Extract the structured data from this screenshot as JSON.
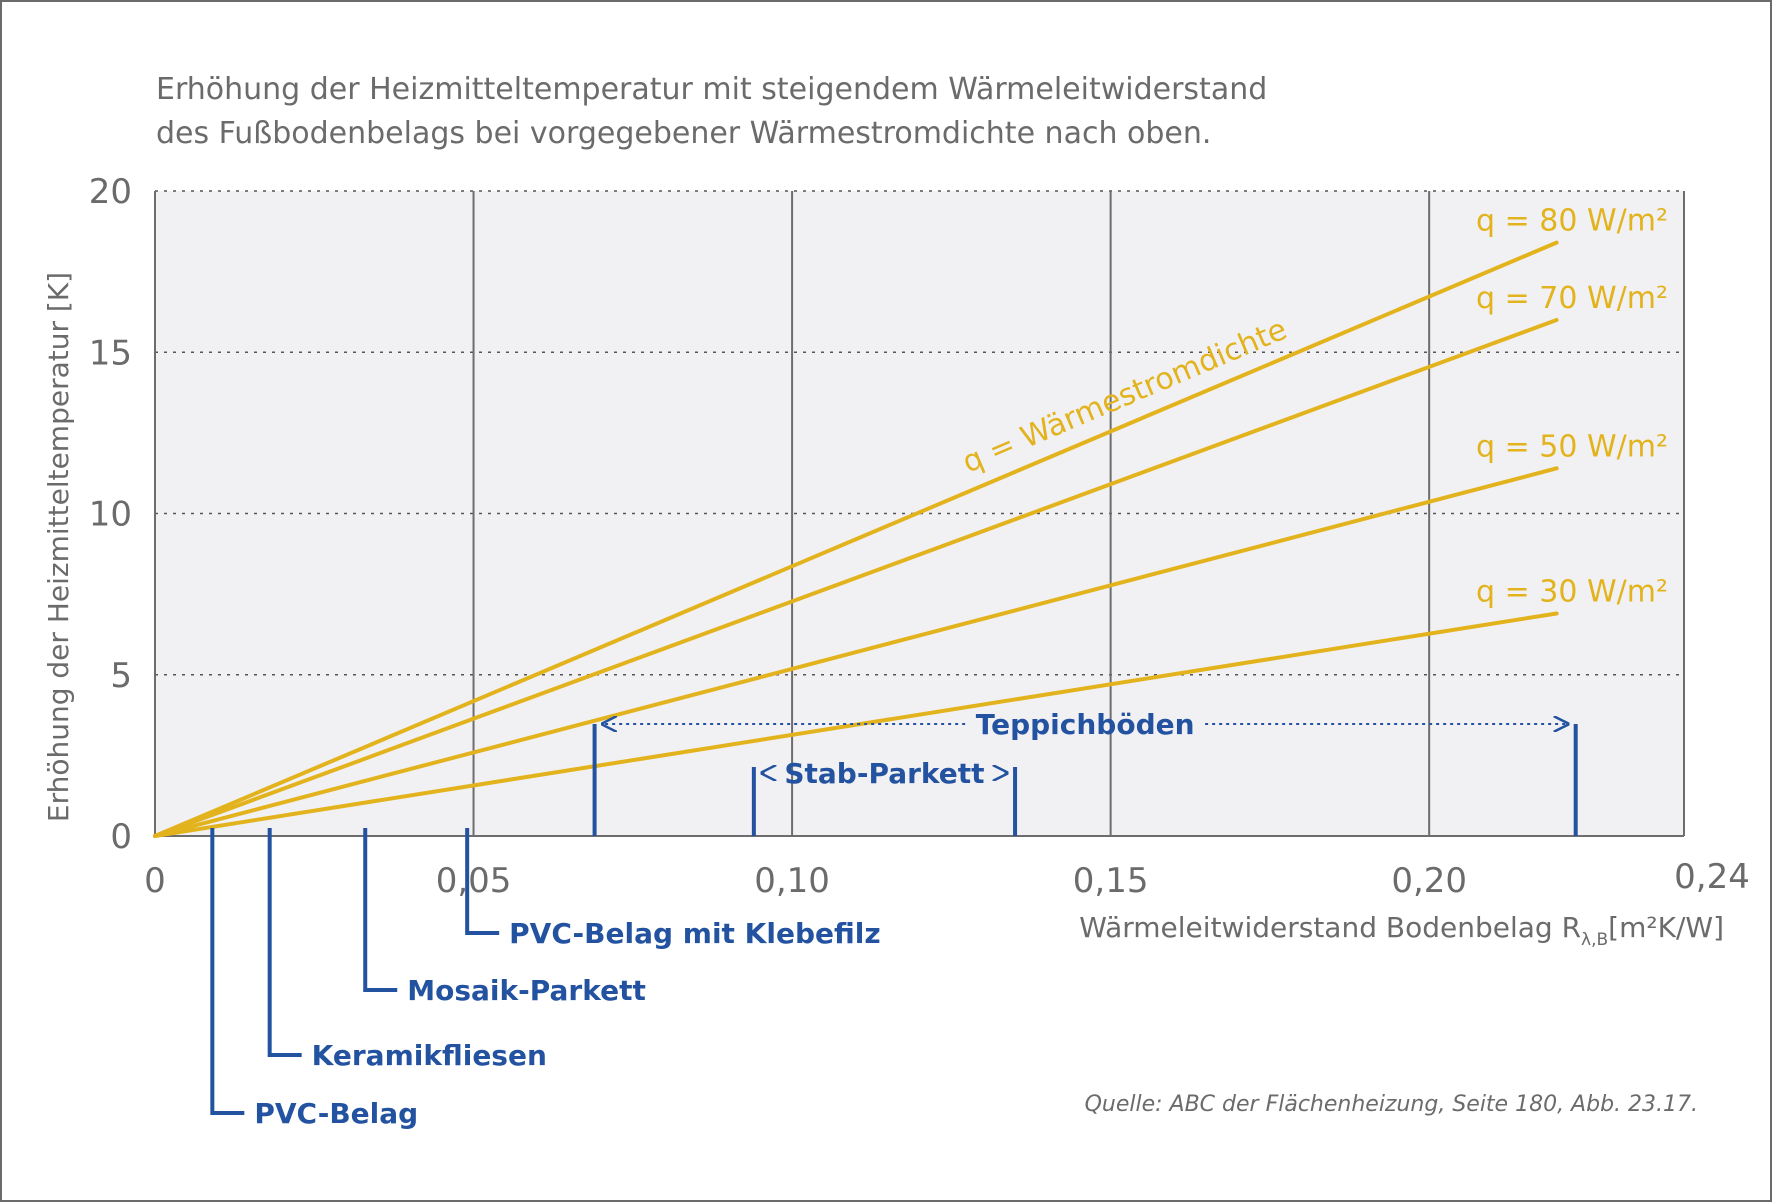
{
  "chart_data": {
    "type": "line",
    "title": "Erhöhung der Heizmitteltemperatur mit steigendem Wärmeleitwiderstand",
    "subtitle": "des Fußbodenbelags bei vorgegebener Wärmestromdichte nach oben.",
    "xlabel": "Wärmeleitwiderstand Bodenbelag R",
    "xlabel_sub": "λ,B",
    "xlabel_unit": "[m²K/W]",
    "ylabel": "Erhöhung der Heizmitteltemperatur [K]",
    "xlim": [
      0,
      0.24
    ],
    "ylim": [
      0,
      20
    ],
    "x_ticks": [
      {
        "value": 0,
        "label": "0"
      },
      {
        "value": 0.05,
        "label": "0,05"
      },
      {
        "value": 0.1,
        "label": "0,10"
      },
      {
        "value": 0.15,
        "label": "0,15"
      },
      {
        "value": 0.2,
        "label": "0,20"
      },
      {
        "value": 0.24,
        "label": "0,24"
      }
    ],
    "y_ticks": [
      {
        "value": 0,
        "label": "0"
      },
      {
        "value": 5,
        "label": "5"
      },
      {
        "value": 10,
        "label": "10"
      },
      {
        "value": 15,
        "label": "15"
      },
      {
        "value": 20,
        "label": "20"
      }
    ],
    "grid": true,
    "series": [
      {
        "name": "q = 80 W/m²",
        "x": [
          0,
          0.22
        ],
        "y": [
          0,
          18.4
        ]
      },
      {
        "name": "q = 70 W/m²",
        "x": [
          0,
          0.22
        ],
        "y": [
          0,
          16.0
        ]
      },
      {
        "name": "q = 50 W/m²",
        "x": [
          0,
          0.22
        ],
        "y": [
          0,
          11.4
        ]
      },
      {
        "name": "q = 30 W/m²",
        "x": [
          0,
          0.22
        ],
        "y": [
          0,
          6.9
        ]
      }
    ],
    "curve_annotation": "q = Wärmestromdichte",
    "materials_below": [
      {
        "label": "PVC-Belag",
        "x": 0.009
      },
      {
        "label": "Keramikfliesen",
        "x": 0.018
      },
      {
        "label": "Mosaik-Parkett",
        "x": 0.033
      },
      {
        "label": "PVC-Belag mit Klebefilz",
        "x": 0.049
      }
    ],
    "ranges": [
      {
        "label": "Stab-Parkett",
        "x": [
          0.094,
          0.135
        ]
      },
      {
        "label": "Teppichböden",
        "x": [
          0.069,
          0.223
        ]
      }
    ],
    "colors": {
      "series": "#e3b31e",
      "materials": "#2352a0",
      "plot_background": "#f1f1f3",
      "text": "#6b6b6b"
    }
  },
  "source": "Quelle: ABC der Flächenheizung, Seite 180, Abb. 23.17."
}
